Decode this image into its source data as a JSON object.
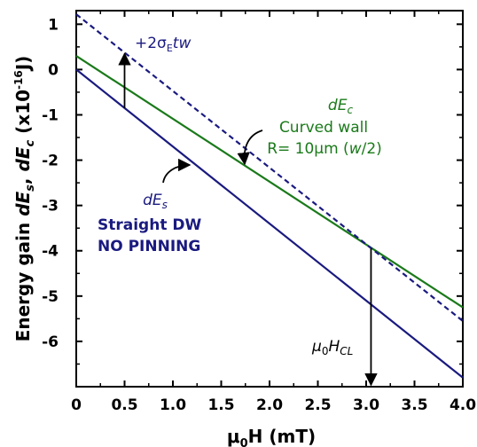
{
  "chart_data": {
    "type": "line",
    "xlabel": "μ0H (mT)",
    "ylabel": "Energy gain dEs, dEc (x10-16 J)",
    "xlim": [
      0,
      4.0
    ],
    "ylim": [
      -7.0,
      1.3
    ],
    "xticks": [
      "0",
      "0.5",
      "1.0",
      "1.5",
      "2.0",
      "2.5",
      "3.0",
      "3.5",
      "4.0"
    ],
    "xtick_values": [
      0,
      0.5,
      1.0,
      1.5,
      2.0,
      2.5,
      3.0,
      3.5,
      4.0
    ],
    "yticks": [
      "1",
      "0",
      "-1",
      "-2",
      "-3",
      "-4",
      "-5",
      "-6"
    ],
    "ytick_values": [
      1,
      0,
      -1,
      -2,
      -3,
      -4,
      -5,
      -6
    ],
    "grid": false,
    "series": [
      {
        "name": "dEs",
        "color": "#1a1a80",
        "style": "solid",
        "x": [
          0,
          4.0
        ],
        "y": [
          0.0,
          -6.8
        ]
      },
      {
        "name": "dEc",
        "color": "#1a7a1a",
        "style": "solid",
        "x": [
          0,
          4.0
        ],
        "y": [
          0.3,
          -5.25
        ]
      },
      {
        "name": "dEs + 2σEtw",
        "color": "#1a1a80",
        "style": "dashed",
        "x": [
          0,
          4.0
        ],
        "y": [
          1.22,
          -5.55
        ]
      }
    ],
    "annotations": {
      "offset_arrow": {
        "x": 0.5,
        "y_from": -0.85,
        "y_to": 0.35
      },
      "critical_arrow": {
        "x": 3.05,
        "y_from": -3.95,
        "y_to": -7.0
      },
      "dEc_pointer": {
        "x": 1.7,
        "y": -2.1
      },
      "dEs_pointer": {
        "x": 1.18,
        "y": -2.1
      }
    }
  },
  "labels": {
    "offset_prefix": "+2σ",
    "offset_sub": "E",
    "offset_suffix": "tw",
    "dEc_d": "d",
    "dEc_E": "E",
    "dEc_sub": "c",
    "curved_line1": "Curved wall",
    "curved_line2_prefix": "R= 10μm (",
    "curved_line2_w": "w",
    "curved_line2_suffix": "/2)",
    "dEs_d": "d",
    "dEs_E": "E",
    "dEs_sub": "s",
    "straight_line1": "Straight DW",
    "straight_line2": "NO PINNING",
    "hcl_mu": "μ",
    "hcl_mu_sub": "0",
    "hcl_H": "H",
    "hcl_sub": "CL"
  },
  "axis_text": {
    "ylabel_prefix": "Energy gain ",
    "ylabel_d1": "dE",
    "ylabel_s": "s",
    "ylabel_comma": ", ",
    "ylabel_d2": "dE",
    "ylabel_c": "c",
    "ylabel_unit": " (x10",
    "ylabel_exp": "-16",
    "ylabel_J": "J)",
    "xlabel_mu": "μ",
    "xlabel_0": "0",
    "xlabel_rest": "H (mT)"
  },
  "colors": {
    "navy": "#1a1a80",
    "green": "#1a7a1a",
    "axis": "#000000"
  }
}
